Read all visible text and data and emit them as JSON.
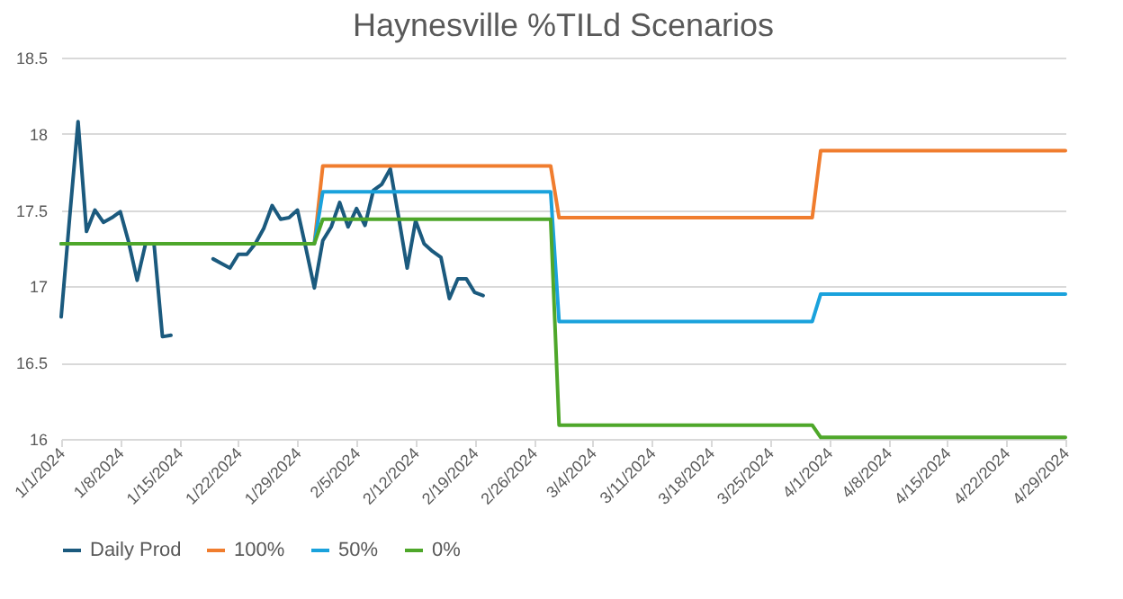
{
  "chart_data": {
    "type": "line",
    "title": "Haynesville %TILd Scenarios",
    "x": [
      "2024-01-01",
      "2024-01-02",
      "2024-01-03",
      "2024-01-04",
      "2024-01-05",
      "2024-01-06",
      "2024-01-07",
      "2024-01-08",
      "2024-01-09",
      "2024-01-10",
      "2024-01-11",
      "2024-01-12",
      "2024-01-13",
      "2024-01-14",
      "2024-01-15",
      "2024-01-16",
      "2024-01-17",
      "2024-01-18",
      "2024-01-19",
      "2024-01-20",
      "2024-01-21",
      "2024-01-22",
      "2024-01-23",
      "2024-01-24",
      "2024-01-25",
      "2024-01-26",
      "2024-01-27",
      "2024-01-28",
      "2024-01-29",
      "2024-01-30",
      "2024-01-31",
      "2024-02-01",
      "2024-02-02",
      "2024-02-03",
      "2024-02-04",
      "2024-02-05",
      "2024-02-06",
      "2024-02-07",
      "2024-02-08",
      "2024-02-09",
      "2024-02-10",
      "2024-02-11",
      "2024-02-12",
      "2024-02-13",
      "2024-02-14",
      "2024-02-15",
      "2024-02-16",
      "2024-02-17",
      "2024-02-18",
      "2024-02-19",
      "2024-02-20"
    ],
    "series": [
      {
        "name": "Daily Prod",
        "color": "#1b5a7e",
        "values": [
          16.8,
          17.45,
          18.08,
          17.36,
          17.5,
          17.42,
          17.45,
          17.49,
          17.29,
          17.04,
          17.28,
          17.28,
          16.67,
          16.68,
          null,
          null,
          null,
          null,
          17.18,
          17.15,
          17.12,
          17.21,
          17.21,
          17.28,
          17.38,
          17.53,
          17.44,
          17.45,
          17.5,
          17.25,
          16.99,
          17.3,
          17.39,
          17.55,
          17.39,
          17.51,
          17.4,
          17.63,
          17.67,
          17.77,
          17.45,
          17.12,
          17.43,
          17.28,
          17.23,
          17.19,
          16.92,
          17.05,
          17.05,
          16.96,
          16.94
        ]
      },
      {
        "name": "100%",
        "color": "#f07d2e",
        "x": [
          "2024-01-01",
          "2024-01-31",
          "2024-02-01",
          "2024-02-28",
          "2024-02-29",
          "2024-03-30",
          "2024-03-31",
          "2024-04-29"
        ],
        "values": [
          17.28,
          17.28,
          17.79,
          17.79,
          17.45,
          17.45,
          17.89,
          17.89
        ]
      },
      {
        "name": "50%",
        "color": "#1aa2dc",
        "x": [
          "2024-01-01",
          "2024-01-31",
          "2024-02-01",
          "2024-02-28",
          "2024-02-29",
          "2024-03-30",
          "2024-03-31",
          "2024-04-29"
        ],
        "values": [
          17.28,
          17.28,
          17.62,
          17.62,
          16.77,
          16.77,
          16.95,
          16.95
        ]
      },
      {
        "name": "0%",
        "color": "#4ea72a",
        "x": [
          "2024-01-01",
          "2024-01-31",
          "2024-02-01",
          "2024-02-28",
          "2024-02-29",
          "2024-03-30",
          "2024-03-31",
          "2024-04-29"
        ],
        "values": [
          17.28,
          17.28,
          17.44,
          17.44,
          16.09,
          16.09,
          16.01,
          16.01
        ]
      }
    ],
    "xlim": [
      "2024-01-01",
      "2024-04-29"
    ],
    "xticks": [
      {
        "value": "2024-01-01",
        "label": "1/1/2024"
      },
      {
        "value": "2024-01-08",
        "label": "1/8/2024"
      },
      {
        "value": "2024-01-15",
        "label": "1/15/2024"
      },
      {
        "value": "2024-01-22",
        "label": "1/22/2024"
      },
      {
        "value": "2024-01-29",
        "label": "1/29/2024"
      },
      {
        "value": "2024-02-05",
        "label": "2/5/2024"
      },
      {
        "value": "2024-02-12",
        "label": "2/12/2024"
      },
      {
        "value": "2024-02-19",
        "label": "2/19/2024"
      },
      {
        "value": "2024-02-26",
        "label": "2/26/2024"
      },
      {
        "value": "2024-03-04",
        "label": "3/4/2024"
      },
      {
        "value": "2024-03-11",
        "label": "3/11/2024"
      },
      {
        "value": "2024-03-18",
        "label": "3/18/2024"
      },
      {
        "value": "2024-03-25",
        "label": "3/25/2024"
      },
      {
        "value": "2024-04-01",
        "label": "4/1/2024"
      },
      {
        "value": "2024-04-08",
        "label": "4/8/2024"
      },
      {
        "value": "2024-04-15",
        "label": "4/15/2024"
      },
      {
        "value": "2024-04-22",
        "label": "4/22/2024"
      },
      {
        "value": "2024-04-29",
        "label": "4/29/2024"
      }
    ],
    "ylim": [
      16,
      18.5
    ],
    "yticks": [
      16,
      16.5,
      17,
      17.5,
      18,
      18.5
    ],
    "grid": "y",
    "legend": "bottom",
    "marker": "none",
    "line_style": "solid"
  }
}
